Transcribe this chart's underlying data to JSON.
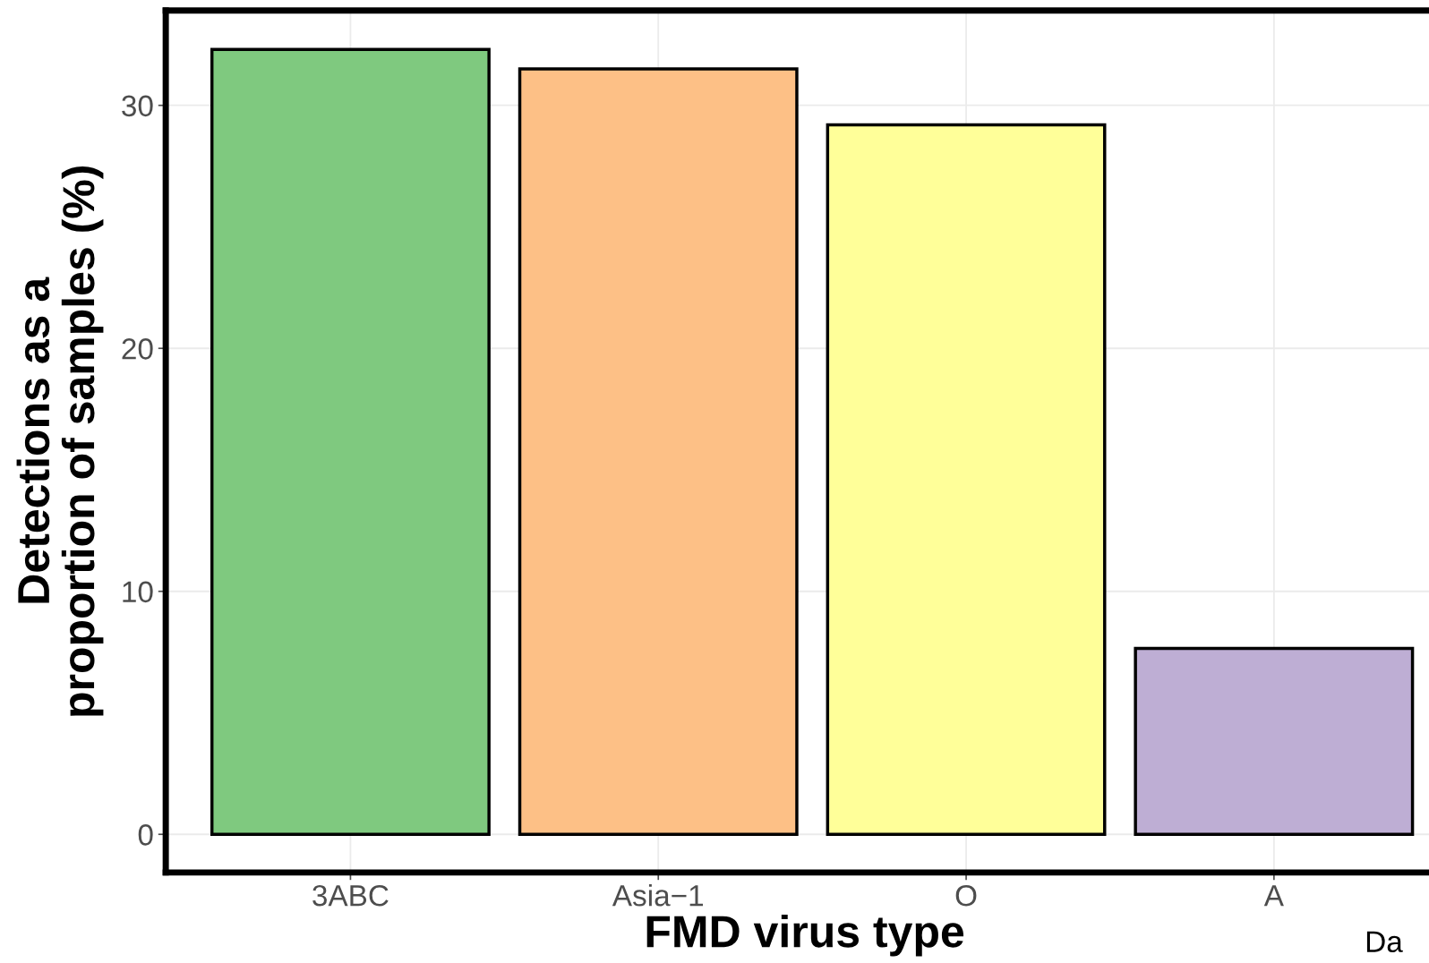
{
  "chart_data": {
    "type": "bar",
    "xlabel": "FMD virus type",
    "ylabel": "Detections as a\nproportion of samples (%)",
    "categories": [
      "3ABC",
      "Asia−1",
      "O",
      "A"
    ],
    "values": [
      32.3,
      31.5,
      29.2,
      7.65
    ],
    "colors": [
      "#7fc97f",
      "#fdc086",
      "#ffff99",
      "#beaed4"
    ],
    "ylim": [
      -1.57,
      33.9
    ],
    "yticks": [
      0,
      10,
      20,
      30
    ],
    "grid": true,
    "annotations": [
      "Da"
    ]
  }
}
